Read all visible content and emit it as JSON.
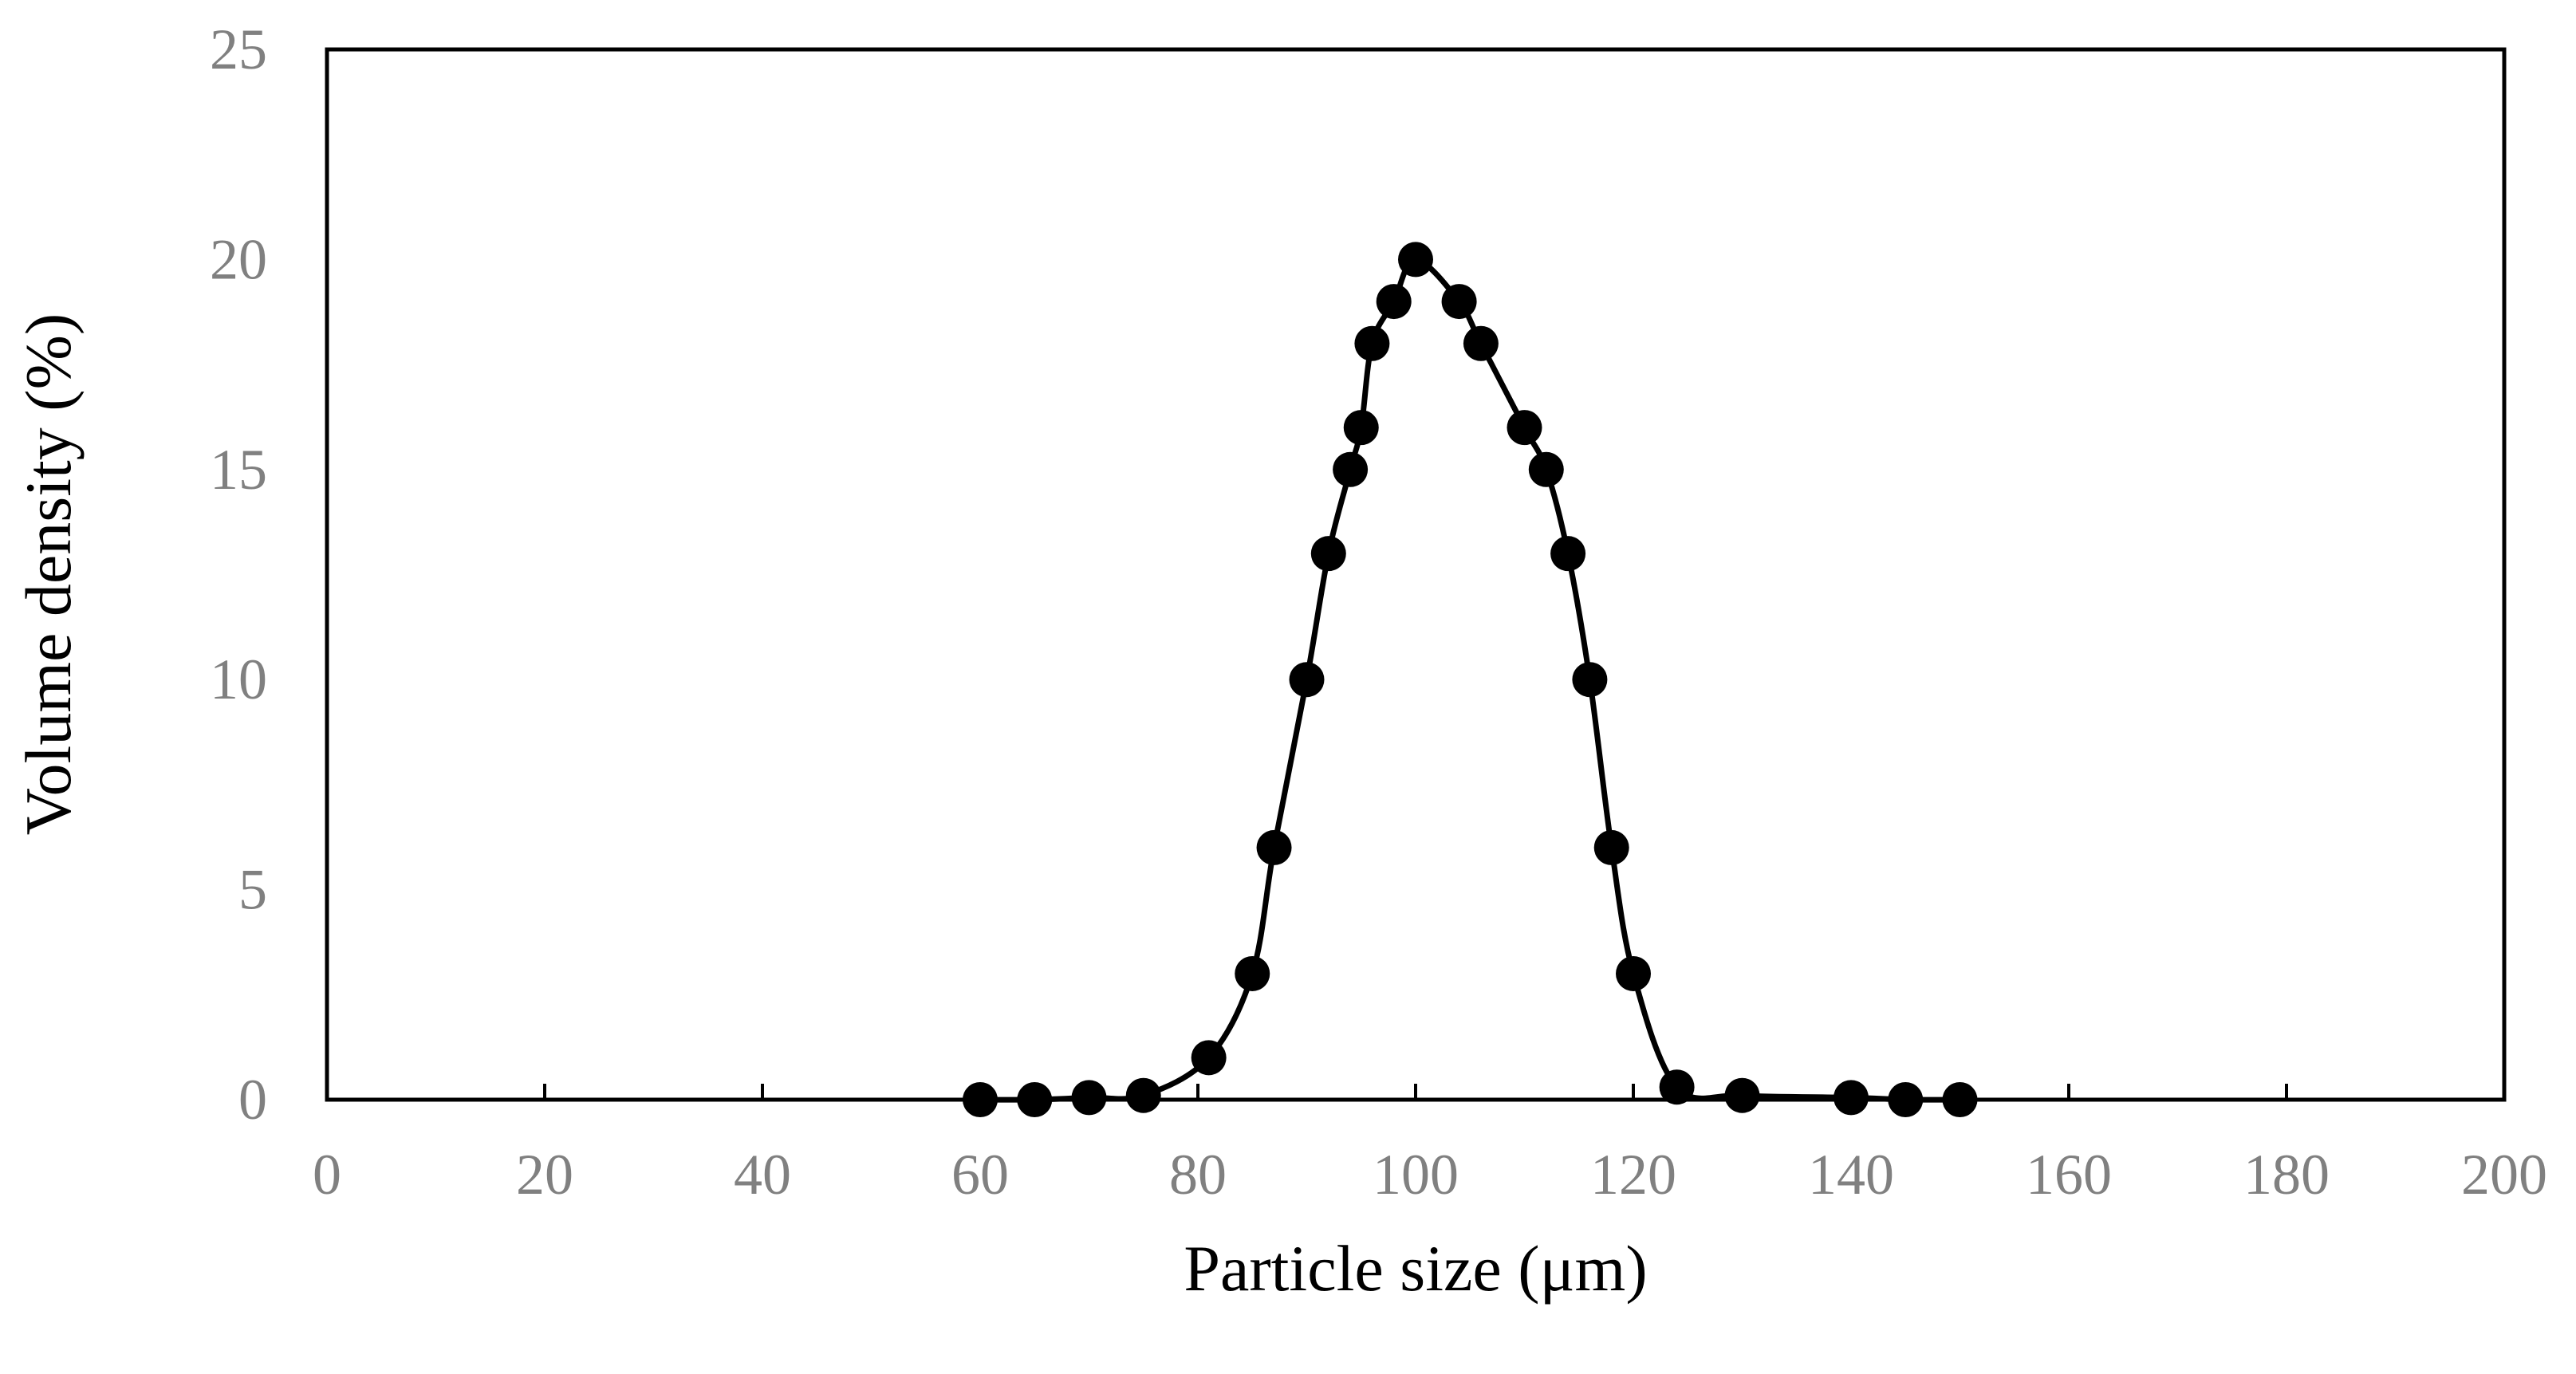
{
  "chart_data": {
    "type": "line",
    "title": "",
    "xlabel": "Particle size (μm)",
    "ylabel": "Volume density (%)",
    "xlim": [
      0,
      200
    ],
    "ylim": [
      0,
      25
    ],
    "xticks": [
      "0",
      "20",
      "40",
      "60",
      "80",
      "100",
      "120",
      "140",
      "160",
      "180",
      "200"
    ],
    "yticks": [
      "0",
      "5",
      "10",
      "15",
      "20",
      "25"
    ],
    "grid": false,
    "legend": "none",
    "markers": "filled-circle",
    "series": [
      {
        "x": [
          60,
          65,
          70,
          75,
          81,
          85,
          87,
          90,
          92,
          94,
          95,
          96,
          98,
          100,
          104,
          106,
          110,
          112,
          114,
          116,
          118,
          120,
          124,
          130,
          140,
          145,
          150
        ],
        "y": [
          0,
          0,
          0.05,
          0.1,
          1,
          3,
          6,
          10,
          13,
          15,
          16,
          18,
          19,
          20,
          19,
          18,
          16,
          15,
          13,
          10,
          6,
          3,
          0.3,
          0.1,
          0.05,
          0,
          0
        ]
      }
    ],
    "colors": {
      "line": "#000000",
      "marker": "#000000",
      "tick_text": "#808080",
      "axis": "#000000"
    }
  }
}
